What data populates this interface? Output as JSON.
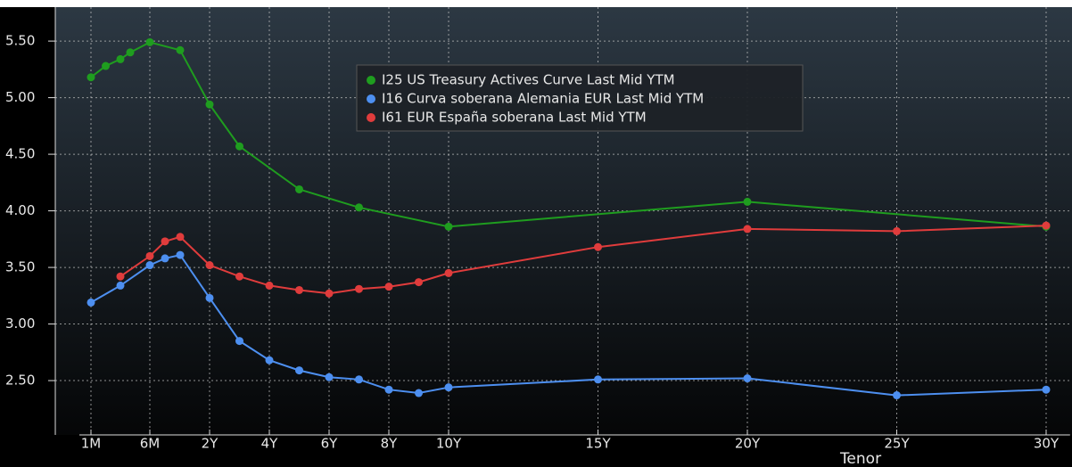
{
  "chart_data": {
    "type": "line",
    "xlabel": "Tenor",
    "xlim": [
      0,
      30.8
    ],
    "ylim": [
      2.02,
      5.8
    ],
    "xticks": [
      {
        "value": 0.0833,
        "label": "1M"
      },
      {
        "value": 0.5,
        "label": "6M"
      },
      {
        "value": 2,
        "label": "2Y"
      },
      {
        "value": 4,
        "label": "4Y"
      },
      {
        "value": 6,
        "label": "6Y"
      },
      {
        "value": 8,
        "label": "8Y"
      },
      {
        "value": 10,
        "label": "10Y"
      },
      {
        "value": 15,
        "label": "15Y"
      },
      {
        "value": 20,
        "label": "20Y"
      },
      {
        "value": 25,
        "label": "25Y"
      },
      {
        "value": 30,
        "label": "30Y"
      }
    ],
    "yticks": [
      {
        "value": 2.5,
        "label": "2.50"
      },
      {
        "value": 3,
        "label": "3.00"
      },
      {
        "value": 3.5,
        "label": "3.50"
      },
      {
        "value": 4,
        "label": "4.00"
      },
      {
        "value": 4.5,
        "label": "4.50"
      },
      {
        "value": 5,
        "label": "5.00"
      },
      {
        "value": 5.5,
        "label": "5.50"
      }
    ],
    "grid": true,
    "series": [
      {
        "name": "I25 US Treasury Actives Curve Last Mid YTM",
        "color": "#1f9d1f",
        "x": [
          0.0833,
          0.1667,
          0.25,
          0.3333,
          0.5,
          1,
          2,
          3,
          5,
          7,
          10,
          20,
          30
        ],
        "values": [
          5.18,
          5.28,
          5.34,
          5.4,
          5.49,
          5.42,
          4.94,
          4.57,
          4.19,
          4.03,
          3.86,
          4.08,
          3.86
        ]
      },
      {
        "name": "I16 Curva soberana Alemania EUR Last Mid YTM",
        "color": "#4d8ff0",
        "x": [
          0.0833,
          0.25,
          0.5,
          0.75,
          1,
          2,
          3,
          4,
          5,
          6,
          7,
          8,
          9,
          10,
          15,
          20,
          25,
          30
        ],
        "values": [
          3.19,
          3.34,
          3.52,
          3.58,
          3.61,
          3.23,
          2.85,
          2.68,
          2.59,
          2.53,
          2.51,
          2.42,
          2.39,
          2.44,
          2.51,
          2.52,
          2.37,
          2.42
        ]
      },
      {
        "name": "I61 EUR España soberana Last Mid YTM",
        "color": "#e03c3c",
        "x": [
          0.25,
          0.5,
          0.75,
          1,
          2,
          3,
          4,
          5,
          6,
          7,
          8,
          9,
          10,
          15,
          20,
          25,
          30
        ],
        "values": [
          3.42,
          3.6,
          3.73,
          3.77,
          3.52,
          3.42,
          3.34,
          3.3,
          3.27,
          3.31,
          3.33,
          3.37,
          3.45,
          3.68,
          3.84,
          3.82,
          3.87
        ]
      }
    ],
    "legend": "upper center"
  }
}
